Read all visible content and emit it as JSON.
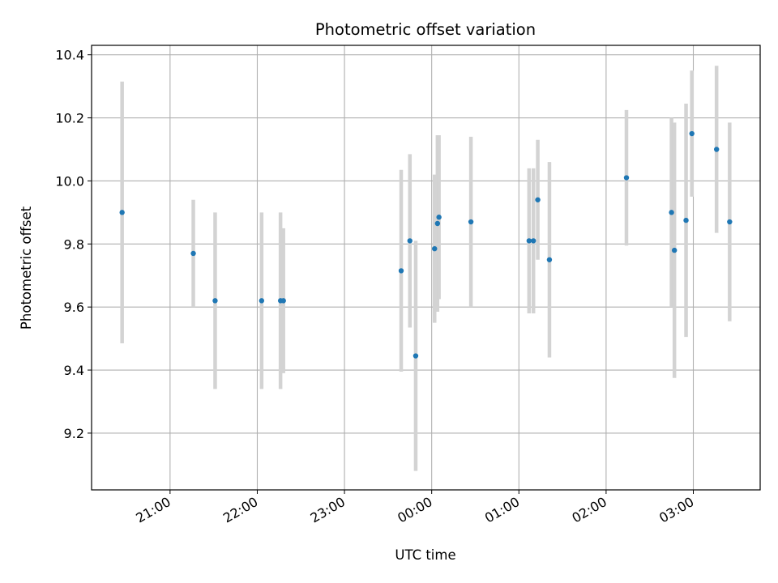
{
  "chart_data": {
    "type": "scatter",
    "title": "Photometric offset variation",
    "xlabel": "UTC time",
    "ylabel": "Photometric offset",
    "x_ticks": [
      "21:00",
      "22:00",
      "23:00",
      "00:00",
      "01:00",
      "02:00",
      "03:00"
    ],
    "y_ticks": [
      "9.2",
      "9.4",
      "9.6",
      "9.8",
      "10.0",
      "10.2",
      "10.4"
    ],
    "xlim": [
      "20:06",
      "03:46"
    ],
    "ylim": [
      9.02,
      10.43
    ],
    "grid": true,
    "legend": "none",
    "colors": {
      "point": "#1f77b4",
      "errorbar": "#d3d3d3",
      "grid": "#b0b0b0"
    },
    "points": [
      {
        "t": "20:27",
        "y": 9.9,
        "err": 0.415
      },
      {
        "t": "21:16",
        "y": 9.77,
        "err": 0.17
      },
      {
        "t": "21:31",
        "y": 9.62,
        "err": 0.28
      },
      {
        "t": "22:03",
        "y": 9.62,
        "err": 0.28
      },
      {
        "t": "22:16",
        "y": 9.62,
        "err": 0.28
      },
      {
        "t": "22:18",
        "y": 9.62,
        "err": 0.23
      },
      {
        "t": "23:39",
        "y": 9.715,
        "err": 0.32
      },
      {
        "t": "23:45",
        "y": 9.81,
        "err": 0.275
      },
      {
        "t": "23:49",
        "y": 9.445,
        "err": 0.365
      },
      {
        "t": "00:02",
        "y": 9.785,
        "err": 0.235
      },
      {
        "t": "00:04",
        "y": 9.865,
        "err": 0.28
      },
      {
        "t": "00:05",
        "y": 9.885,
        "err": 0.26
      },
      {
        "t": "00:27",
        "y": 9.87,
        "err": 0.27
      },
      {
        "t": "01:07",
        "y": 9.81,
        "err": 0.23
      },
      {
        "t": "01:10",
        "y": 9.81,
        "err": 0.23
      },
      {
        "t": "01:13",
        "y": 9.94,
        "err": 0.19
      },
      {
        "t": "01:21",
        "y": 9.75,
        "err": 0.31
      },
      {
        "t": "02:14",
        "y": 10.01,
        "err": 0.215
      },
      {
        "t": "02:45",
        "y": 9.9,
        "err": 0.3
      },
      {
        "t": "02:47",
        "y": 9.78,
        "err": 0.405
      },
      {
        "t": "02:55",
        "y": 9.875,
        "err": 0.37
      },
      {
        "t": "02:59",
        "y": 10.15,
        "err": 0.2
      },
      {
        "t": "03:16",
        "y": 10.1,
        "err": 0.265
      },
      {
        "t": "03:25",
        "y": 9.87,
        "err": 0.315
      }
    ]
  }
}
